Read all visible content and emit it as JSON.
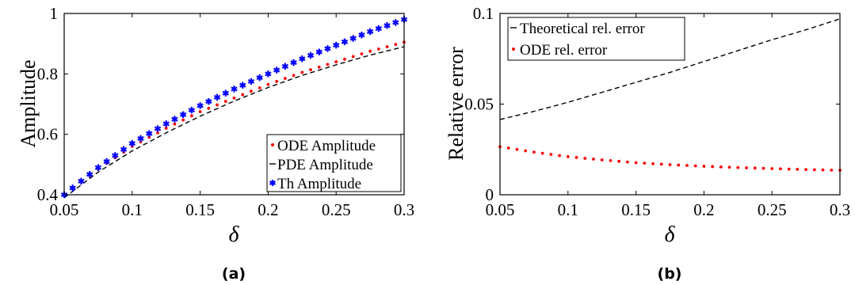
{
  "chart_data": [
    {
      "type": "line",
      "caption": "(a)",
      "xlabel": "δ",
      "ylabel": "Amplitude",
      "xlim": [
        0.05,
        0.3
      ],
      "ylim": [
        0.4,
        1.0
      ],
      "xticks": [
        "0.05",
        "0.1",
        "0.15",
        "0.2",
        "0.25",
        "0.3"
      ],
      "yticks": [
        "0.4",
        "0.6",
        "0.8",
        "1"
      ],
      "grid": false,
      "legend": "bottom-right",
      "series": [
        {
          "name": "ODE Amplitude",
          "style": "dotted",
          "color": "#ff0000",
          "x": [
            0.05,
            0.075,
            0.1,
            0.125,
            0.15,
            0.175,
            0.2,
            0.225,
            0.25,
            0.275,
            0.3
          ],
          "y": [
            0.4,
            0.485,
            0.56,
            0.62,
            0.675,
            0.72,
            0.765,
            0.805,
            0.84,
            0.875,
            0.905
          ]
        },
        {
          "name": "PDE Amplitude",
          "style": "dashed",
          "color": "#000000",
          "x": [
            0.05,
            0.075,
            0.1,
            0.125,
            0.15,
            0.175,
            0.2,
            0.225,
            0.25,
            0.275,
            0.3
          ],
          "y": [
            0.39,
            0.475,
            0.545,
            0.605,
            0.66,
            0.71,
            0.755,
            0.795,
            0.83,
            0.862,
            0.89
          ]
        },
        {
          "name": "Th Amplitude",
          "style": "star",
          "color": "#0000ff",
          "x": [
            0.05,
            0.075,
            0.1,
            0.125,
            0.15,
            0.175,
            0.2,
            0.225,
            0.25,
            0.275,
            0.3
          ],
          "y": [
            0.4,
            0.49,
            0.57,
            0.635,
            0.695,
            0.75,
            0.8,
            0.85,
            0.895,
            0.94,
            0.98
          ]
        }
      ]
    },
    {
      "type": "line",
      "caption": "(b)",
      "xlabel": "δ",
      "ylabel": "Relative error",
      "xlim": [
        0.05,
        0.3
      ],
      "ylim": [
        0,
        0.1
      ],
      "xticks": [
        "0.05",
        "0.1",
        "0.15",
        "0.2",
        "0.25",
        "0.3"
      ],
      "yticks": [
        "0",
        "0.05",
        "0.1"
      ],
      "grid": false,
      "legend": "top-left",
      "series": [
        {
          "name": "Theoretical rel. error",
          "style": "dashed",
          "color": "#000000",
          "x": [
            0.05,
            0.075,
            0.1,
            0.125,
            0.15,
            0.175,
            0.2,
            0.225,
            0.25,
            0.275,
            0.3
          ],
          "y": [
            0.0415,
            0.046,
            0.051,
            0.0565,
            0.062,
            0.0675,
            0.0735,
            0.0795,
            0.0855,
            0.091,
            0.097
          ]
        },
        {
          "name": "ODE rel. error",
          "style": "dotted",
          "color": "#ff0000",
          "x": [
            0.05,
            0.075,
            0.1,
            0.125,
            0.15,
            0.175,
            0.2,
            0.225,
            0.25,
            0.275,
            0.3
          ],
          "y": [
            0.0265,
            0.0235,
            0.021,
            0.0192,
            0.0177,
            0.0166,
            0.0157,
            0.015,
            0.0144,
            0.0139,
            0.0135
          ]
        }
      ]
    }
  ]
}
